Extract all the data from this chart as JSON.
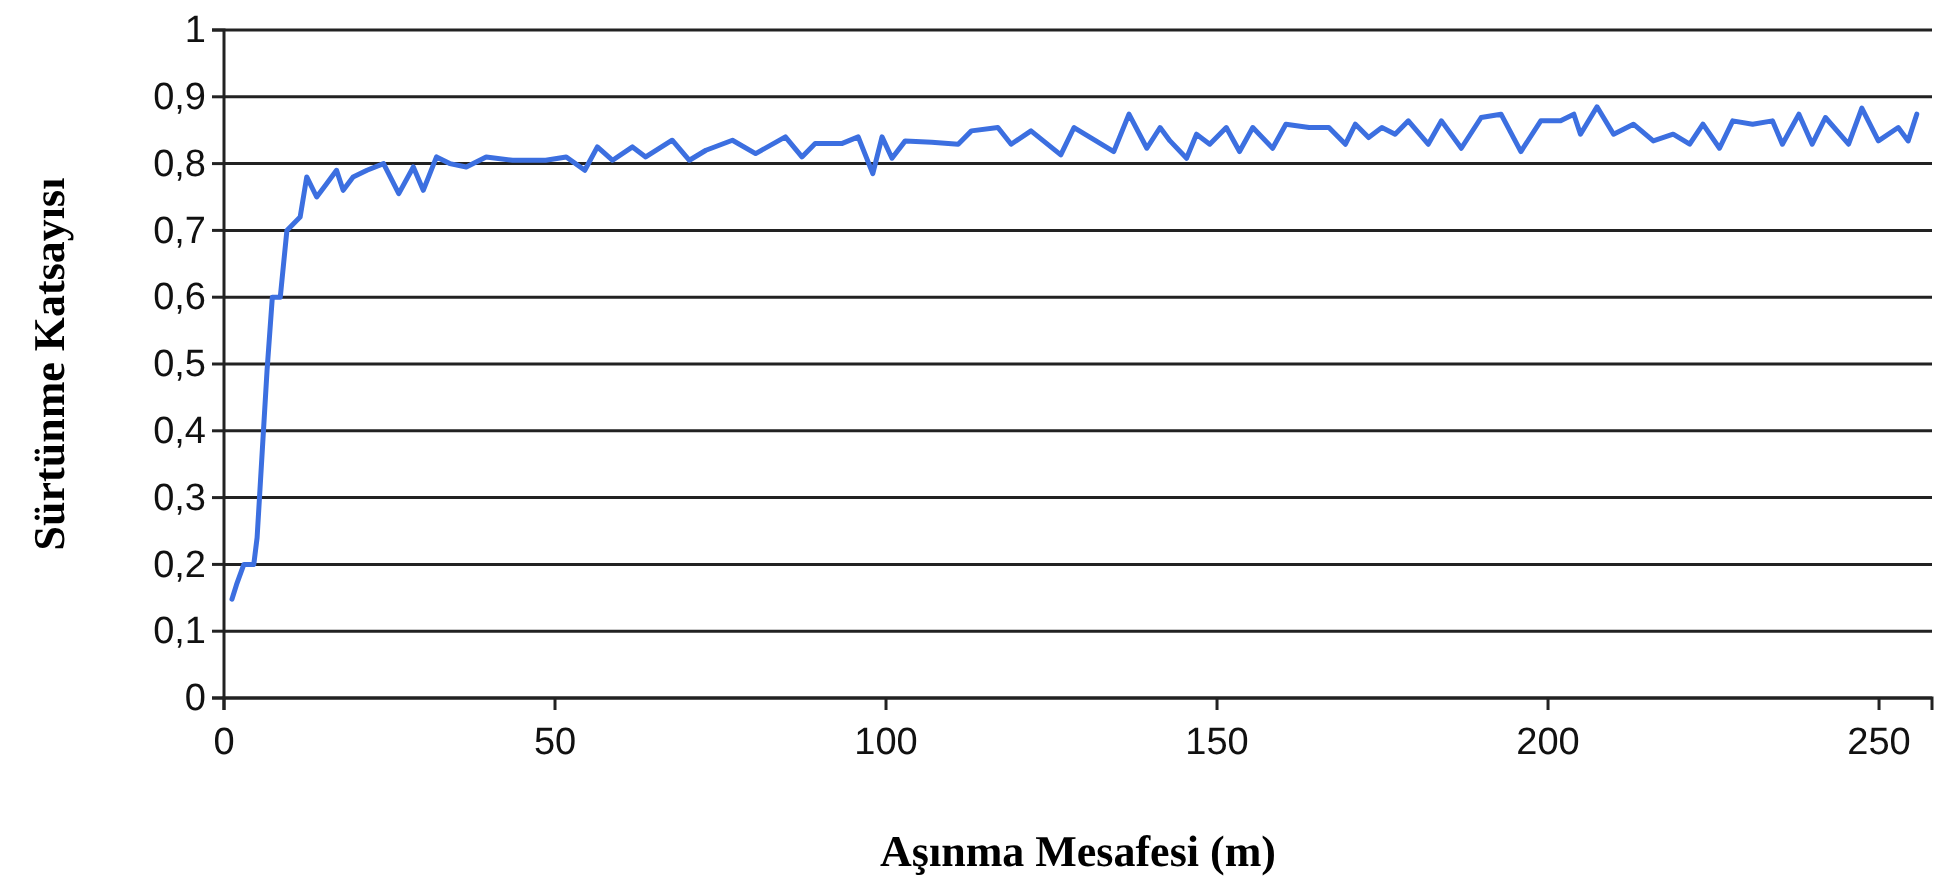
{
  "chart_data": {
    "type": "line",
    "xlabel": "Aşınma Mesafesi (m)",
    "ylabel": "Sürtünme Katsayısı",
    "xlim": [
      0,
      258
    ],
    "xticks": [
      0,
      50,
      100,
      150,
      200,
      250
    ],
    "ylim": [
      0,
      1
    ],
    "yticks": [
      {
        "value": 0,
        "label": "0"
      },
      {
        "value": 0.1,
        "label": "0,1"
      },
      {
        "value": 0.2,
        "label": "0,2"
      },
      {
        "value": 0.3,
        "label": "0,3"
      },
      {
        "value": 0.4,
        "label": "0,4"
      },
      {
        "value": 0.5,
        "label": "0,5"
      },
      {
        "value": 0.6,
        "label": "0,6"
      },
      {
        "value": 0.7,
        "label": "0,7"
      },
      {
        "value": 0.8,
        "label": "0,8"
      },
      {
        "value": 0.9,
        "label": "0,9"
      },
      {
        "value": 1,
        "label": "1"
      }
    ],
    "grid": "y",
    "marker": "none",
    "line_style": "solid",
    "series": [
      {
        "color": "#3c6fe0",
        "x": [
          1.2,
          1.9,
          3,
          4.5,
          5,
          6.5,
          7.3,
          8.5,
          9.5,
          11.5,
          12.5,
          14,
          15.5,
          17,
          18,
          19.5,
          21.6,
          24.1,
          26.4,
          28.6,
          30.1,
          32.1,
          34.1,
          36.6,
          39.6,
          43.6,
          48.6,
          51.7,
          54.5,
          56.4,
          58.7,
          61.7,
          63.7,
          67.7,
          70.3,
          72.8,
          76.8,
          80.3,
          84.8,
          87.3,
          89.3,
          93.3,
          95.8,
          98,
          99.4,
          100.9,
          102.9,
          106.9,
          110.9,
          112.9,
          116.9,
          118.9,
          121.9,
          126.4,
          128.4,
          130.9,
          134.4,
          136.7,
          139.4,
          141.4,
          142.9,
          145.4,
          146.9,
          148.9,
          151.4,
          153.4,
          155.4,
          158.4,
          160.4,
          163.9,
          166.9,
          169.4,
          170.9,
          172.9,
          174.9,
          176.9,
          178.9,
          181.9,
          183.9,
          186.9,
          189.9,
          192.9,
          195.9,
          198.9,
          201.9,
          203.9,
          204.9,
          207.4,
          209.9,
          212.9,
          215.9,
          218.9,
          221.4,
          223.4,
          225.9,
          227.9,
          230.9,
          233.9,
          235.4,
          237.9,
          239.9,
          241.9,
          245.4,
          247.4,
          249.9,
          252.9,
          254.4,
          255.7
        ],
        "values": [
          0.148,
          0.17,
          0.2,
          0.2,
          0.24,
          0.49,
          0.6,
          0.6,
          0.7,
          0.72,
          0.78,
          0.75,
          0.77,
          0.79,
          0.76,
          0.78,
          0.79,
          0.8,
          0.755,
          0.795,
          0.76,
          0.81,
          0.8,
          0.795,
          0.81,
          0.805,
          0.805,
          0.81,
          0.79,
          0.825,
          0.805,
          0.825,
          0.81,
          0.835,
          0.805,
          0.82,
          0.835,
          0.815,
          0.84,
          0.81,
          0.83,
          0.83,
          0.84,
          0.785,
          0.84,
          0.808,
          0.834,
          0.832,
          0.829,
          0.849,
          0.854,
          0.829,
          0.849,
          0.813,
          0.854,
          0.839,
          0.818,
          0.874,
          0.823,
          0.854,
          0.834,
          0.808,
          0.844,
          0.829,
          0.854,
          0.818,
          0.854,
          0.823,
          0.859,
          0.854,
          0.854,
          0.829,
          0.859,
          0.839,
          0.854,
          0.844,
          0.864,
          0.829,
          0.864,
          0.823,
          0.869,
          0.874,
          0.818,
          0.864,
          0.864,
          0.874,
          0.844,
          0.885,
          0.844,
          0.859,
          0.834,
          0.844,
          0.829,
          0.859,
          0.823,
          0.864,
          0.859,
          0.864,
          0.829,
          0.874,
          0.829,
          0.869,
          0.829,
          0.883,
          0.834,
          0.854,
          0.834,
          0.874
        ]
      }
    ]
  }
}
